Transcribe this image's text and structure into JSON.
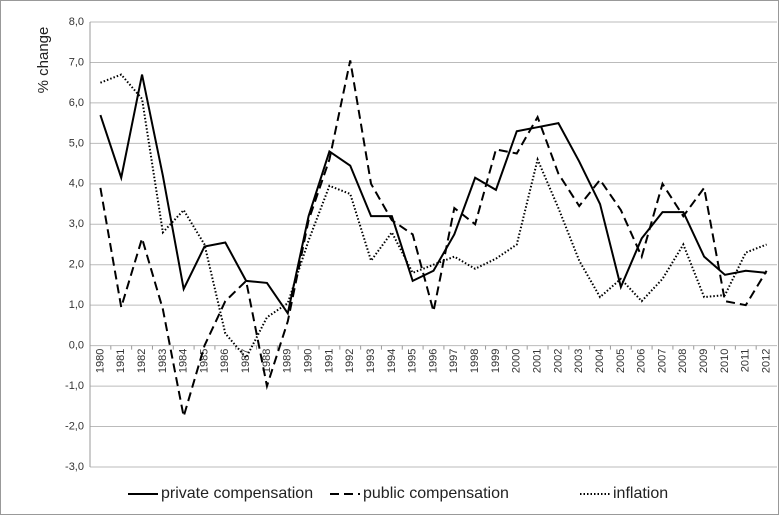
{
  "chart_data": {
    "type": "line",
    "y_label": "% change",
    "categories": [
      "1980",
      "1981",
      "1982",
      "1983",
      "1984",
      "1985",
      "1986",
      "1987",
      "1988",
      "1989",
      "1990",
      "1991",
      "1992",
      "1993",
      "1994",
      "1995",
      "1996",
      "1997",
      "1998",
      "1999",
      "2000",
      "2001",
      "2002",
      "2003",
      "2004",
      "2005",
      "2006",
      "2007",
      "2008",
      "2009",
      "2010",
      "2011",
      "2012"
    ],
    "series": [
      {
        "name": "private compensation",
        "color": "#000000",
        "dash": "solid",
        "values": [
          5.7,
          4.15,
          6.7,
          4.2,
          1.4,
          2.45,
          2.55,
          1.6,
          1.55,
          0.8,
          3.2,
          4.8,
          4.45,
          3.2,
          3.2,
          1.6,
          1.85,
          2.75,
          4.15,
          3.85,
          5.3,
          5.4,
          5.5,
          4.55,
          3.5,
          1.45,
          2.65,
          3.3,
          3.3,
          2.2,
          1.75,
          1.85,
          1.8
        ]
      },
      {
        "name": "public compensation",
        "color": "#000000",
        "dash": "dashed",
        "values": [
          3.9,
          0.95,
          2.65,
          0.9,
          -1.75,
          0,
          1.1,
          1.6,
          -1.0,
          0.6,
          3.1,
          4.6,
          7.05,
          4.0,
          3.1,
          2.75,
          0.85,
          3.4,
          3.0,
          4.85,
          4.75,
          5.65,
          4.25,
          3.45,
          4.1,
          3.35,
          2.2,
          4.0,
          3.2,
          3.9,
          1.1,
          1.0,
          1.85
        ]
      },
      {
        "name": "inflation",
        "color": "#000000",
        "dash": "dotted",
        "values": [
          6.5,
          6.7,
          6.1,
          2.8,
          3.35,
          2.5,
          0.3,
          -0.3,
          0.7,
          1.05,
          2.6,
          3.95,
          3.75,
          2.1,
          2.8,
          1.8,
          2.0,
          2.2,
          1.9,
          2.15,
          2.5,
          4.6,
          3.4,
          2.1,
          1.2,
          1.65,
          1.1,
          1.65,
          2.5,
          1.2,
          1.25,
          2.3,
          2.5
        ]
      }
    ],
    "ylim": [
      -3,
      8
    ],
    "yticks": [
      {
        "value": -3,
        "label": "-3,0"
      },
      {
        "value": -2,
        "label": "-2,0"
      },
      {
        "value": -1,
        "label": "-1,0"
      },
      {
        "value": 0,
        "label": "0,0"
      },
      {
        "value": 1,
        "label": "1,0"
      },
      {
        "value": 2,
        "label": "2,0"
      },
      {
        "value": 3,
        "label": "3,0"
      },
      {
        "value": 4,
        "label": "4,0"
      },
      {
        "value": 5,
        "label": "5,0"
      },
      {
        "value": 6,
        "label": "6,0"
      },
      {
        "value": 7,
        "label": "7,0"
      },
      {
        "value": 8,
        "label": "8,0"
      }
    ],
    "grid": true,
    "legend": "bottom"
  }
}
